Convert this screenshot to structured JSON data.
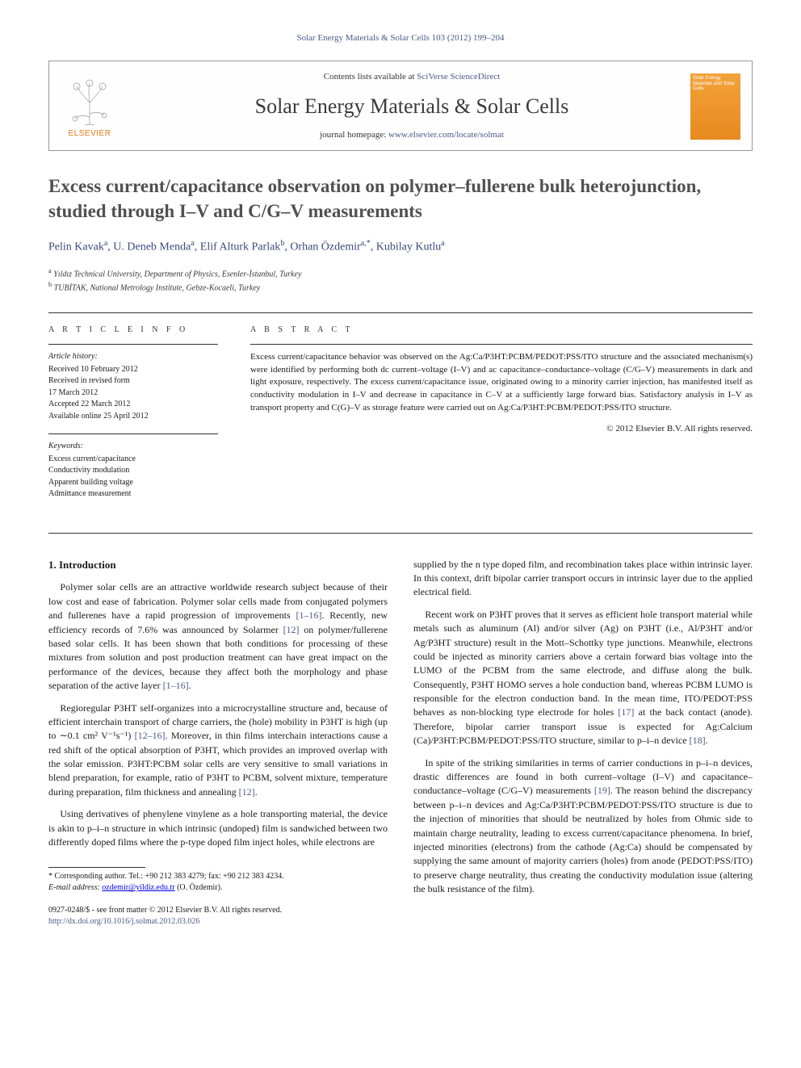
{
  "running_header": "Solar Energy Materials & Solar Cells 103 (2012) 199–204",
  "masthead": {
    "contents_prefix": "Contents lists available at ",
    "contents_link": "SciVerse ScienceDirect",
    "journal_name": "Solar Energy Materials & Solar Cells",
    "homepage_prefix": "journal homepage: ",
    "homepage_link": "www.elsevier.com/locate/solmat",
    "elsevier_label": "ELSEVIER",
    "cover_title": "Solar Energy Materials and Solar Cells"
  },
  "article": {
    "title": "Excess current/capacitance observation on polymer–fullerene bulk heterojunction, studied through I–V and C/G–V measurements",
    "authors_html": "Pelin Kavak<sup>a</sup>, U. Deneb Menda<sup>a</sup>, Elif Alturk Parlak<sup>b</sup>, Orhan Özdemir<sup>a,*</sup>, Kubilay Kutlu<sup>a</sup>",
    "affiliations": [
      {
        "sup": "a",
        "text": "Yıldız Technical University, Department of Physics, Esenler-İstanbul, Turkey"
      },
      {
        "sup": "b",
        "text": "TUBİTAK, National Metrology Institute, Gebze-Kocaeli, Turkey"
      }
    ]
  },
  "meta": {
    "info_heading": "A R T I C L E  I N F O",
    "abstract_heading": "A B S T R A C T",
    "history_heading": "Article history:",
    "history": [
      "Received 10 February 2012",
      "Received in revised form",
      "17 March 2012",
      "Accepted 22 March 2012",
      "Available online 25 April 2012"
    ],
    "keywords_heading": "Keywords:",
    "keywords": [
      "Excess current/capacitance",
      "Conductivity modulation",
      "Apparent building voltage",
      "Admittance measurement"
    ],
    "abstract": "Excess current/capacitance behavior was observed on the Ag:Ca/P3HT:PCBM/PEDOT:PSS/ITO structure and the associated mechanism(s) were identified by performing both dc current–voltage (I–V) and ac capacitance–conductance–voltage (C/G–V) measurements in dark and light exposure, respectively. The excess current/capacitance issue, originated owing to a minority carrier injection, has manifested itself as conductivity modulation in I–V and decrease in capacitance in C–V at a sufficiently large forward bias. Satisfactory analysis in I–V as transport property and C(G)–V as storage feature were carried out on Ag:Ca/P3HT:PCBM/PEDOT:PSS/ITO structure.",
    "copyright": "© 2012 Elsevier B.V. All rights reserved."
  },
  "body": {
    "section_heading": "1. Introduction",
    "left_paras": [
      "Polymer solar cells are an attractive worldwide research subject because of their low cost and ease of fabrication. Polymer solar cells made from conjugated polymers and fullerenes have a rapid progression of improvements [1–16]. Recently, new efficiency records of 7.6% was announced by Solarmer [12] on polymer/fullerene based solar cells. It has been shown that both conditions for processing of these mixtures from solution and post production treatment can have great impact on the performance of the devices, because they affect both the morphology and phase separation of the active layer [1–16].",
      "Regioregular P3HT self-organizes into a microcrystalline structure and, because of efficient interchain transport of charge carriers, the (hole) mobility in P3HT is high (up to ∼0.1 cm² V⁻¹s⁻¹) [12–16]. Moreover, in thin films interchain interactions cause a red shift of the optical absorption of P3HT, which provides an improved overlap with the solar emission. P3HT:PCBM solar cells are very sensitive to small variations in blend preparation, for example, ratio of P3HT to PCBM, solvent mixture, temperature during preparation, film thickness and annealing [12].",
      "Using derivatives of phenylene vinylene as a hole transporting material, the device is akin to p–i–n structure in which intrinsic (undoped) film is sandwiched between two differently doped films where the p-type doped film inject holes, while electrons are"
    ],
    "right_paras": [
      "supplied by the n type doped film, and recombination takes place within intrinsic layer. In this context, drift bipolar carrier transport occurs in intrinsic layer due to the applied electrical field.",
      "Recent work on P3HT proves that it serves as efficient hole transport material while metals such as aluminum (Al) and/or silver (Ag) on P3HT (i.e., Al/P3HT and/or Ag/P3HT structure) result in the Mott–Schottky type junctions. Meanwhile, electrons could be injected as minority carriers above a certain forward bias voltage into the LUMO of the PCBM from the same electrode, and diffuse along the bulk. Consequently, P3HT HOMO serves a hole conduction band, whereas PCBM LUMO is responsible for the electron conduction band. In the mean time, ITO/PEDOT:PSS behaves as non-blocking type electrode for holes [17] at the back contact (anode). Therefore, bipolar carrier transport issue is expected for Ag:Calcium (Ca)/P3HT:PCBM/PEDOT:PSS/ITO structure, similar to p–i–n device [18].",
      "In spite of the striking similarities in terms of carrier conductions in p–i–n devices, drastic differences are found in both current–voltage (I–V) and capacitance–conductance–voltage (C/G–V) measurements [19]. The reason behind the discrepancy between p–i–n devices and Ag:Ca/P3HT:PCBM/PEDOT:PSS/ITO structure is due to the injection of minorities that should be neutralized by holes from Ohmic side to maintain charge neutrality, leading to excess current/capacitance phenomena. In brief, injected minorities (electrons) from the cathode (Ag:Ca) should be compensated by supplying the same amount of majority carriers (holes) from anode (PEDOT:PSS/ITO) to preserve charge neutrality, thus creating the conductivity modulation issue (altering the bulk resistance of the film)."
    ]
  },
  "footnotes": {
    "corr": "* Corresponding author. Tel.: +90 212 383 4279; fax: +90 212 383 4234.",
    "email_label": "E-mail address:",
    "email": "ozdemir@yildiz.edu.tr",
    "email_paren": "(O. Özdemir)."
  },
  "footer": {
    "line1": "0927-0248/$ - see front matter © 2012 Elsevier B.V. All rights reserved.",
    "doi_url": "http://dx.doi.org/10.1016/j.solmat.2012.03.026"
  },
  "colors": {
    "link": "#4a5a8a",
    "elsevier_orange": "#e67817",
    "title_gray": "#505050"
  }
}
